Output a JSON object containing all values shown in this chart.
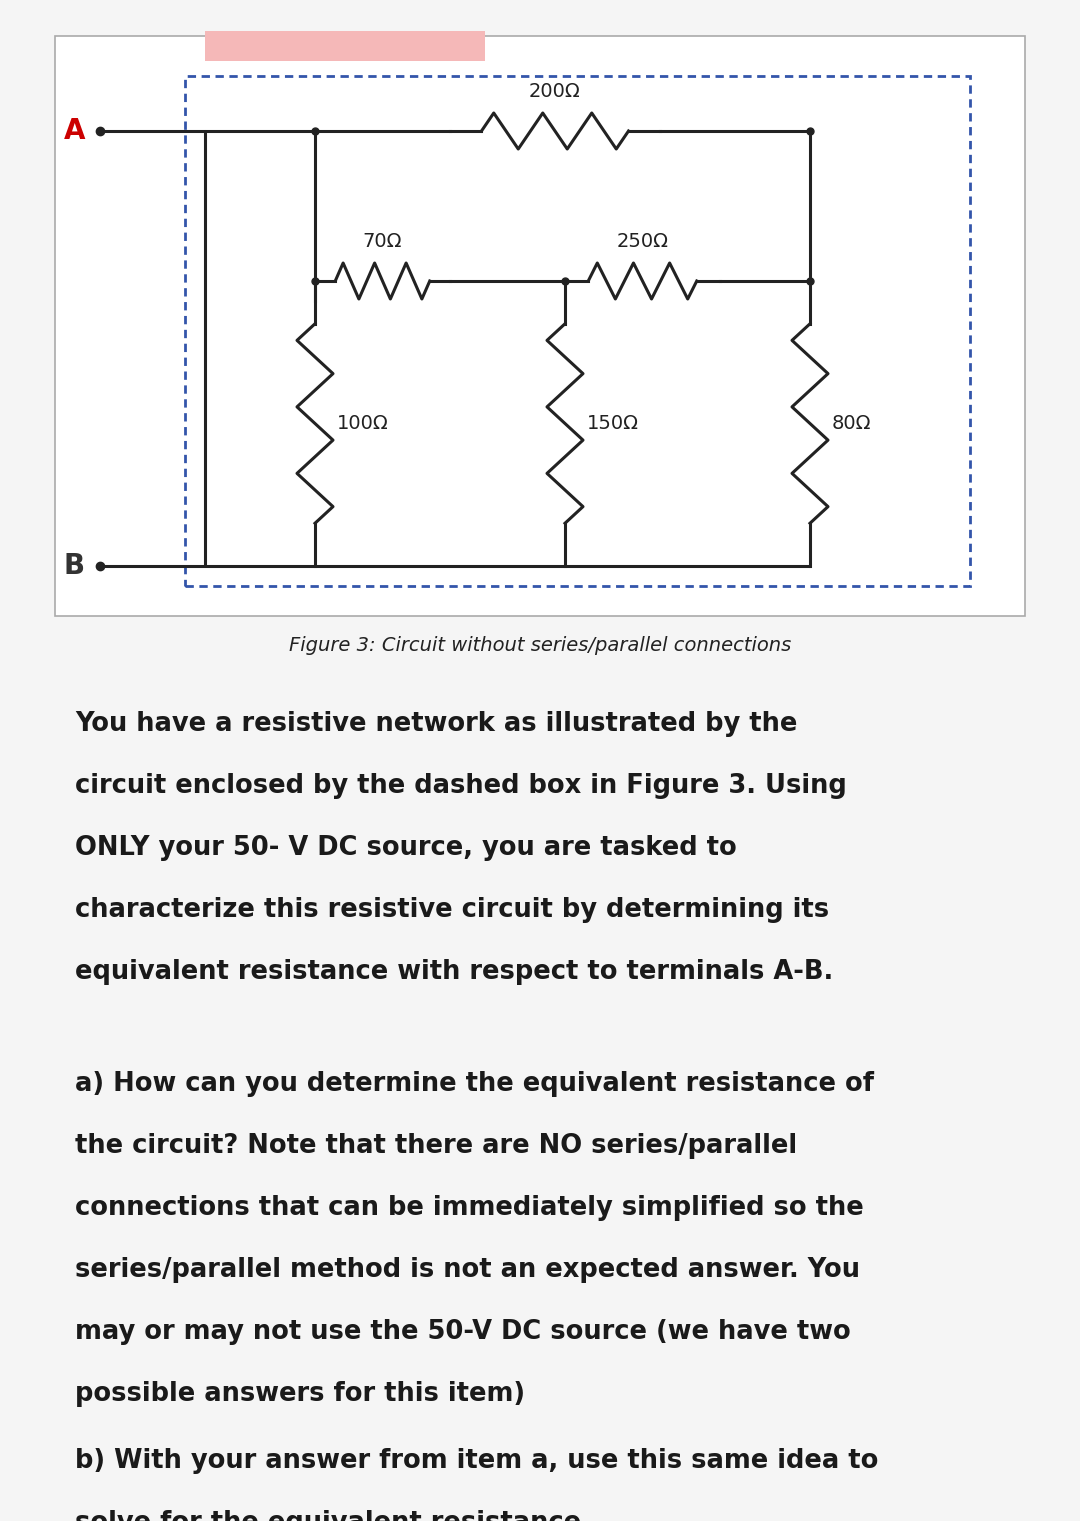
{
  "fig_width": 10.8,
  "fig_height": 15.21,
  "background_color": "#f5f5f5",
  "circuit_box_bg": "#ffffff",
  "dashed_box_color": "#3355aa",
  "pink_bar_color": "#f5b8b8",
  "terminal_A_color": "#cc0000",
  "terminal_B_color": "#333333",
  "wire_color": "#222222",
  "resistor_labels": {
    "R200": "200Ω",
    "R70": "70Ω",
    "R250": "250Ω",
    "R100": "100Ω",
    "R150": "150Ω",
    "R80": "80Ω"
  },
  "figure_caption": "Figure 3: Circuit without series/parallel connections",
  "paragraph1": "You have a resistive network as illustrated by the\ncircuit enclosed by the dashed box in Figure 3. Using\nONLY your 50- V DC source, you are tasked to\ncharacterize this resistive circuit by determining its\nequivalent resistance with respect to terminals A-B.",
  "paragraph2a": "a) How can you determine the equivalent resistance of\nthe circuit? Note that there are NO series/parallel\nconnections that can be immediately simplified so the\nseries/parallel method is not an expected answer. You\nmay or may not use the 50-V DC source (we have two\npossible answers for this item)",
  "paragraph2b": "b) With your answer from item a, use this same idea to\nsolve for the equivalent resistance.",
  "text_fontsize": 18.5,
  "caption_fontsize": 14
}
